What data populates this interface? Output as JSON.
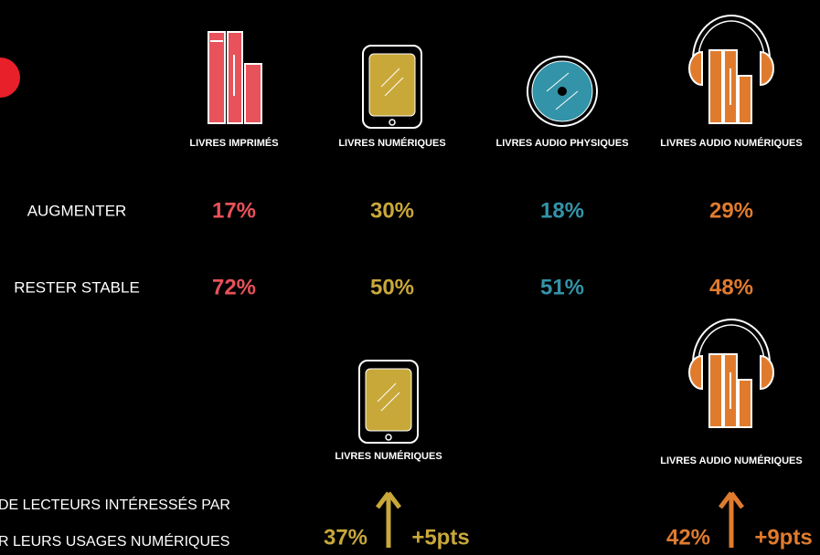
{
  "columns": [
    "LIVRES IMPRIMÉS",
    "LIVRES NUMÉRIQUES",
    "LIVRES AUDIO PHYSIQUES",
    "LIVRES AUDIO NUMÉRIQUES"
  ],
  "rows": [
    {
      "label": "AUGMENTER",
      "values": [
        "17%",
        "30%",
        "18%",
        "29%"
      ]
    },
    {
      "label": "RESTER STABLE",
      "values": [
        "72%",
        "50%",
        "51%",
        "48%"
      ]
    }
  ],
  "caption": [
    "DE LECTEURS  INTÉRESSÉS PAR",
    "R LEURS USAGES NUMÉRIQUES"
  ],
  "highlights": [
    {
      "label": "LIVRES NUMÉRIQUES",
      "value": "37%",
      "change": "+5pts"
    },
    {
      "label": "LIVRES AUDIO NUMÉRIQUES",
      "value": "42%",
      "change": "+9pts"
    }
  ]
}
